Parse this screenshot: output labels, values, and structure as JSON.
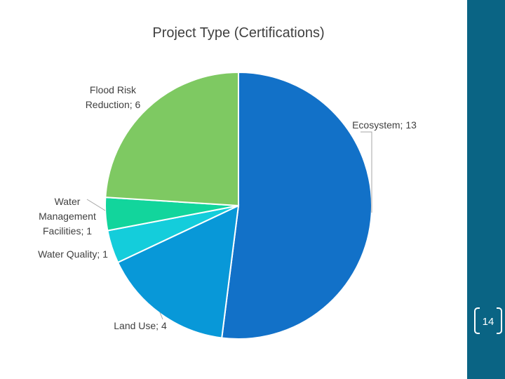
{
  "slide": {
    "page_number": "14",
    "colors": {
      "sidebar": "#0a6484",
      "background": "#ffffff"
    }
  },
  "chart_data": {
    "type": "pie",
    "title": "Project Type (Certifications)",
    "slices": [
      {
        "name": "Ecosystem",
        "value": 13,
        "label": "Ecosystem; 13",
        "color": "#1271c8"
      },
      {
        "name": "Land Use",
        "value": 4,
        "label": "Land Use; 4",
        "color": "#0898d8"
      },
      {
        "name": "Water Quality",
        "value": 1,
        "label": "Water Quality; 1",
        "color": "#14cddb"
      },
      {
        "name": "Water Management Facilities",
        "value": 1,
        "label": "Water Management Facilities; 1",
        "color": "#12d59c"
      },
      {
        "name": "Flood Risk Reduction",
        "value": 6,
        "label": "Flood Risk Reduction; 6",
        "color": "#7ec962"
      }
    ]
  }
}
